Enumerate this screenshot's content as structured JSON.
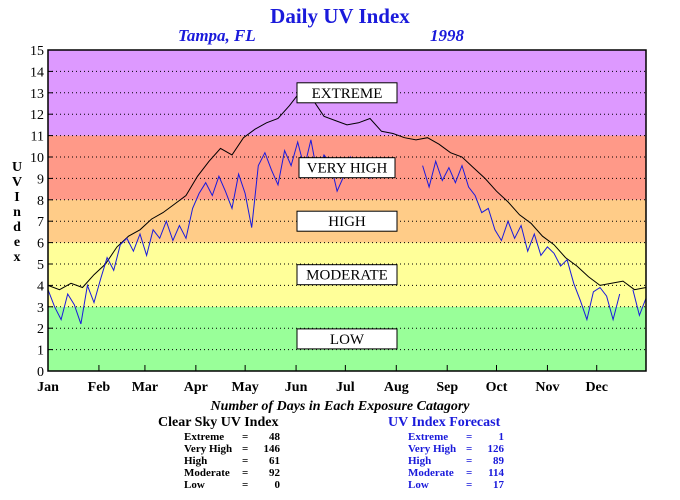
{
  "title": "Daily UV Index",
  "location": "Tampa, FL",
  "year": "1998",
  "ylabel": "UV Index",
  "stats_caption": "Number of Days in Each Exposure Catagory",
  "clear_sky": {
    "heading": "Clear Sky UV Index",
    "rows": [
      {
        "label": "Extreme",
        "value": "48"
      },
      {
        "label": "Very High",
        "value": "146"
      },
      {
        "label": "High",
        "value": "61"
      },
      {
        "label": "Moderate",
        "value": "92"
      },
      {
        "label": "Low",
        "value": "0"
      }
    ]
  },
  "forecast": {
    "heading": "UV Index Forecast",
    "rows": [
      {
        "label": "Extreme",
        "value": "1"
      },
      {
        "label": "Very High",
        "value": "126"
      },
      {
        "label": "High",
        "value": "89"
      },
      {
        "label": "Moderate",
        "value": "114"
      },
      {
        "label": "Low",
        "value": "17"
      }
    ]
  },
  "chart_data": {
    "type": "line",
    "title": "Daily UV Index",
    "ylabel": "UV Index",
    "ylim": [
      0,
      15
    ],
    "yticks": [
      "0",
      "1",
      "2",
      "3",
      "4",
      "5",
      "6",
      "7",
      "8",
      "9",
      "10",
      "11",
      "12",
      "13",
      "14",
      "15"
    ],
    "months": [
      "Jan",
      "Feb",
      "Mar",
      "Apr",
      "May",
      "Jun",
      "Jul",
      "Aug",
      "Sep",
      "Oct",
      "Nov",
      "Dec"
    ],
    "bands": [
      {
        "label": "LOW",
        "from": 0,
        "to": 3,
        "color": "#99ff99"
      },
      {
        "label": "MODERATE",
        "from": 3,
        "to": 6,
        "color": "#ffff99"
      },
      {
        "label": "HIGH",
        "from": 6,
        "to": 8,
        "color": "#ffcc88"
      },
      {
        "label": "VERY HIGH",
        "from": 8,
        "to": 11,
        "color": "#ff9988"
      },
      {
        "label": "EXTREME",
        "from": 11,
        "to": 15,
        "color": "#dd99ff"
      }
    ],
    "grid": true,
    "series": [
      {
        "color": "#000000",
        "points": [
          [
            1,
            4.0
          ],
          [
            8,
            3.8
          ],
          [
            15,
            4.1
          ],
          [
            22,
            3.9
          ],
          [
            29,
            4.5
          ],
          [
            36,
            5.0
          ],
          [
            43,
            5.8
          ],
          [
            50,
            6.3
          ],
          [
            57,
            6.6
          ],
          [
            64,
            7.1
          ],
          [
            71,
            7.4
          ],
          [
            78,
            7.8
          ],
          [
            85,
            8.2
          ],
          [
            92,
            9.1
          ],
          [
            99,
            9.8
          ],
          [
            106,
            10.4
          ],
          [
            113,
            10.1
          ],
          [
            120,
            10.9
          ],
          [
            127,
            11.3
          ],
          [
            134,
            11.6
          ],
          [
            141,
            11.8
          ],
          [
            148,
            12.4
          ],
          [
            155,
            13.1
          ],
          [
            162,
            12.7
          ],
          [
            169,
            11.9
          ],
          [
            176,
            11.7
          ],
          [
            183,
            11.5
          ],
          [
            190,
            11.6
          ],
          [
            197,
            11.8
          ],
          [
            204,
            11.2
          ],
          [
            211,
            11.1
          ],
          [
            218,
            10.9
          ],
          [
            225,
            10.8
          ],
          [
            232,
            10.9
          ],
          [
            239,
            10.6
          ],
          [
            246,
            10.2
          ],
          [
            253,
            10.0
          ],
          [
            260,
            9.5
          ],
          [
            267,
            9.0
          ],
          [
            274,
            8.4
          ],
          [
            281,
            7.9
          ],
          [
            288,
            7.3
          ],
          [
            295,
            6.9
          ],
          [
            302,
            6.3
          ],
          [
            309,
            5.9
          ],
          [
            316,
            5.3
          ],
          [
            323,
            4.9
          ],
          [
            330,
            4.4
          ],
          [
            337,
            4.0
          ],
          [
            344,
            4.1
          ],
          [
            351,
            4.2
          ],
          [
            358,
            3.8
          ],
          [
            365,
            3.9
          ]
        ]
      },
      {
        "color": "#1a1add",
        "points": [
          [
            1,
            3.8
          ],
          [
            5,
            3.0
          ],
          [
            9,
            2.4
          ],
          [
            13,
            3.6
          ],
          [
            17,
            3.1
          ],
          [
            21,
            2.2
          ],
          [
            25,
            4.0
          ],
          [
            29,
            3.2
          ],
          [
            33,
            4.3
          ],
          [
            37,
            5.3
          ],
          [
            41,
            4.7
          ],
          [
            45,
            5.9
          ],
          [
            49,
            6.2
          ],
          [
            53,
            5.6
          ],
          [
            57,
            6.4
          ],
          [
            61,
            5.4
          ],
          [
            65,
            6.6
          ],
          [
            69,
            6.2
          ],
          [
            73,
            7.0
          ],
          [
            77,
            6.1
          ],
          [
            81,
            6.8
          ],
          [
            85,
            6.2
          ],
          [
            89,
            7.6
          ],
          [
            93,
            8.3
          ],
          [
            97,
            8.8
          ],
          [
            101,
            8.2
          ],
          [
            105,
            9.1
          ],
          [
            109,
            8.4
          ],
          [
            113,
            7.6
          ],
          [
            117,
            9.2
          ],
          [
            121,
            8.3
          ],
          [
            125,
            6.7
          ],
          [
            129,
            9.6
          ],
          [
            133,
            10.2
          ],
          [
            137,
            9.4
          ],
          [
            141,
            8.7
          ],
          [
            145,
            10.3
          ],
          [
            149,
            9.6
          ],
          [
            153,
            10.7
          ],
          [
            157,
            9.5
          ],
          [
            161,
            10.8
          ],
          [
            165,
            9.2
          ],
          [
            169,
            10.1
          ],
          [
            173,
            9.7
          ],
          [
            177,
            8.4
          ],
          [
            181,
            9.1
          ],
          [
            185,
            10.0
          ],
          [
            189,
            9.3
          ],
          [
            193,
            9.8
          ],
          [
            197,
            9.0
          ],
          [
            201,
            9.4
          ],
          [
            205,
            9.8
          ],
          [
            213,
            null
          ],
          [
            229,
            9.6
          ],
          [
            233,
            8.6
          ],
          [
            237,
            9.8
          ],
          [
            241,
            8.9
          ],
          [
            245,
            9.5
          ],
          [
            249,
            8.8
          ],
          [
            253,
            9.6
          ],
          [
            257,
            8.6
          ],
          [
            261,
            8.2
          ],
          [
            265,
            7.4
          ],
          [
            269,
            7.6
          ],
          [
            273,
            6.6
          ],
          [
            277,
            6.1
          ],
          [
            281,
            7.0
          ],
          [
            285,
            6.2
          ],
          [
            289,
            6.8
          ],
          [
            293,
            5.6
          ],
          [
            297,
            6.4
          ],
          [
            301,
            5.4
          ],
          [
            305,
            5.8
          ],
          [
            309,
            5.5
          ],
          [
            313,
            4.9
          ],
          [
            317,
            5.2
          ],
          [
            321,
            4.1
          ],
          [
            325,
            3.3
          ],
          [
            329,
            2.4
          ],
          [
            333,
            3.7
          ],
          [
            337,
            3.9
          ],
          [
            341,
            3.5
          ],
          [
            345,
            2.4
          ],
          [
            349,
            3.6
          ],
          [
            353,
            null
          ],
          [
            357,
            3.8
          ],
          [
            361,
            2.6
          ],
          [
            365,
            3.4
          ]
        ]
      }
    ]
  }
}
